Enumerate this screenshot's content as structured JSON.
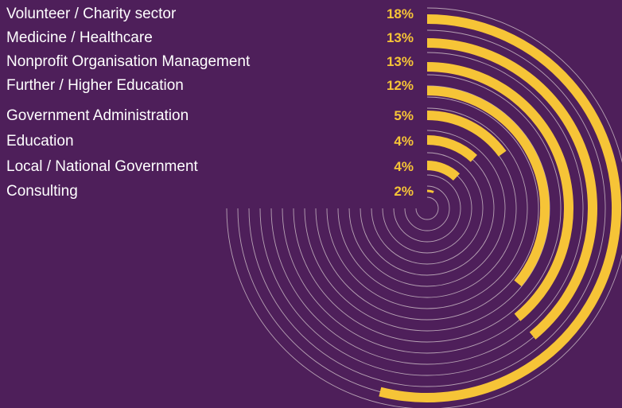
{
  "colors": {
    "background": "#4e1f5a",
    "bar": "#f6c437",
    "ring": "#b7a2b4",
    "label": "#ffffff",
    "value_label": "#f6c437"
  },
  "chart_data": {
    "type": "bar",
    "orientation": "radial",
    "categories": [
      "Volunteer / Charity sector",
      "Medicine / Healthcare",
      "Nonprofit Organisation Management",
      "Further / Higher Education",
      "Government Administration",
      "Education",
      "Local / National Government",
      "Consulting"
    ],
    "values": [
      18,
      13,
      13,
      12,
      5,
      4,
      4,
      2
    ],
    "value_labels": [
      "18%",
      "13%",
      "13%",
      "12%",
      "5%",
      "4%",
      "4%",
      "2%"
    ],
    "units": "%",
    "scale_max": 25,
    "grid": true
  }
}
